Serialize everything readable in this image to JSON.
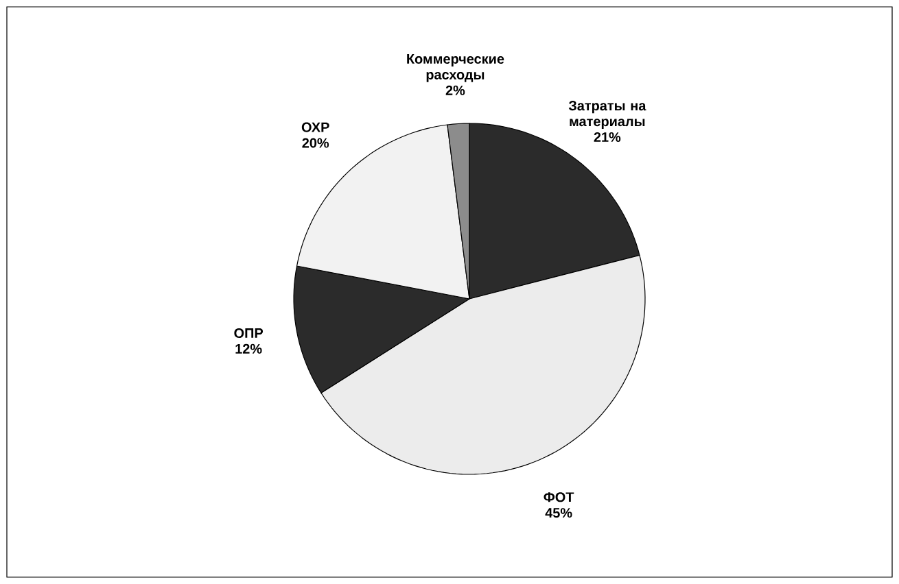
{
  "chart_data": {
    "type": "pie",
    "categories": [
      "Затраты на материалы",
      "ФОТ",
      "ОПР",
      "ОХР",
      "Коммерческие расходы"
    ],
    "values": [
      21,
      45,
      12,
      20,
      2
    ],
    "value_labels": [
      "21%",
      "45%",
      "12%",
      "20%",
      "2%"
    ],
    "colors": [
      "#2b2b2b",
      "#ececec",
      "#2b2b2b",
      "#f2f2f2",
      "#8c8c8c"
    ]
  }
}
